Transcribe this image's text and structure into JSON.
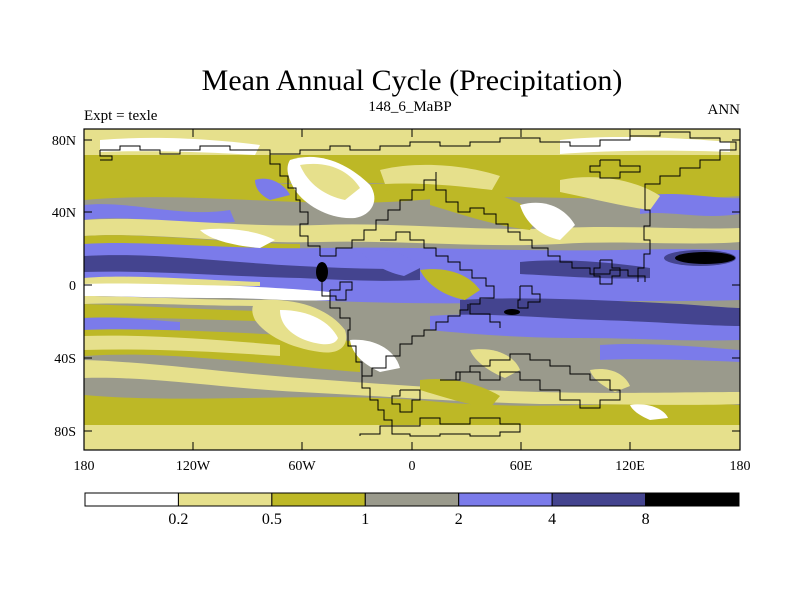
{
  "title": "Mean Annual Cycle (Precipitation)",
  "subtitle_left": "Expt = texle",
  "subtitle_center": "148_6_MaBP",
  "subtitle_right": "ANN",
  "lat_labels": [
    "80N",
    "40N",
    "0",
    "40S",
    "80S"
  ],
  "lon_labels": [
    "180",
    "120W",
    "60W",
    "0",
    "60E",
    "120E",
    "180"
  ],
  "colorbar": {
    "labels": [
      "0.2",
      "0.5",
      "1",
      "2",
      "4",
      "8"
    ],
    "colors": [
      "#ffffff",
      "#e6e08c",
      "#bdb826",
      "#9a9a8c",
      "#7b7bea",
      "#44448f",
      "#000000"
    ]
  }
}
